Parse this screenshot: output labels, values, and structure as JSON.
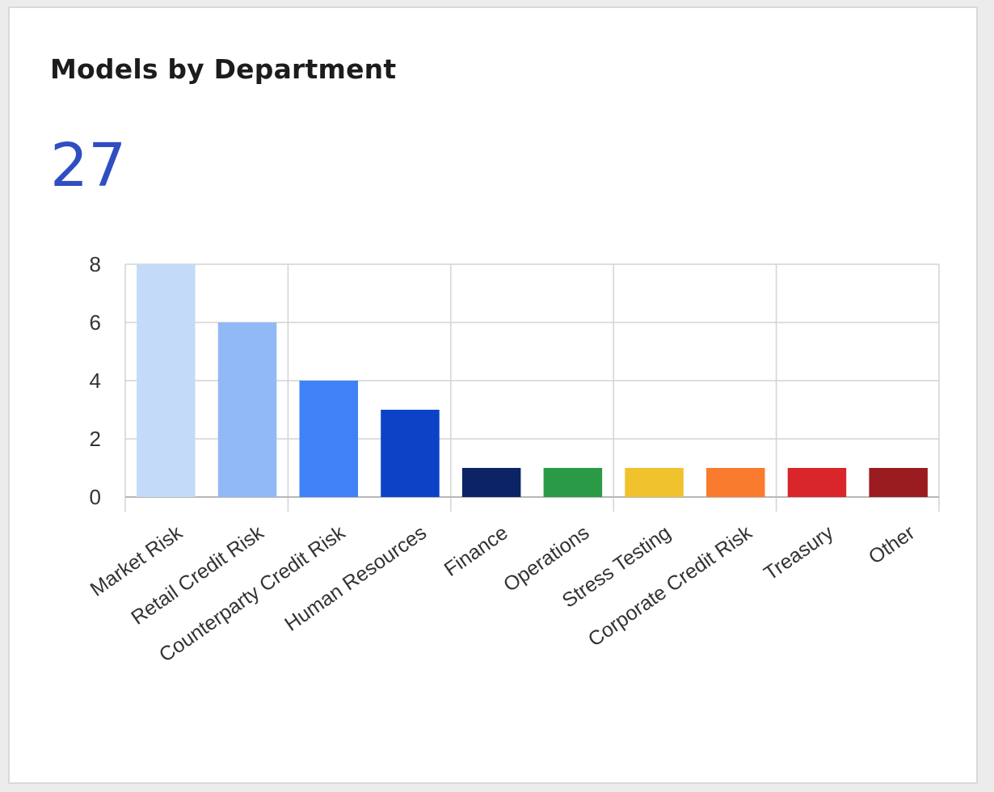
{
  "card": {
    "title": "Models by Department",
    "total": "27",
    "total_color": "#2f4ec2"
  },
  "chart_data": {
    "type": "bar",
    "title": "",
    "xlabel": "",
    "ylabel": "",
    "ylim": [
      0,
      8
    ],
    "yticks": [
      "0",
      "2",
      "4",
      "6",
      "8"
    ],
    "grid": true,
    "categories": [
      "Market Risk",
      "Retail Credit Risk",
      "Counterparty Credit Risk",
      "Human Resources",
      "Finance",
      "Operations",
      "Stress Testing",
      "Corporate Credit Risk",
      "Treasury",
      "Other"
    ],
    "values": [
      8,
      6,
      4,
      3,
      1,
      1,
      1,
      1,
      1,
      1
    ],
    "colors": [
      "#c3dbf9",
      "#91b9f5",
      "#3f82f7",
      "#0c43c6",
      "#0c2466",
      "#2a9a47",
      "#f0c22e",
      "#f97c2e",
      "#d9262a",
      "#9b1c20"
    ]
  }
}
